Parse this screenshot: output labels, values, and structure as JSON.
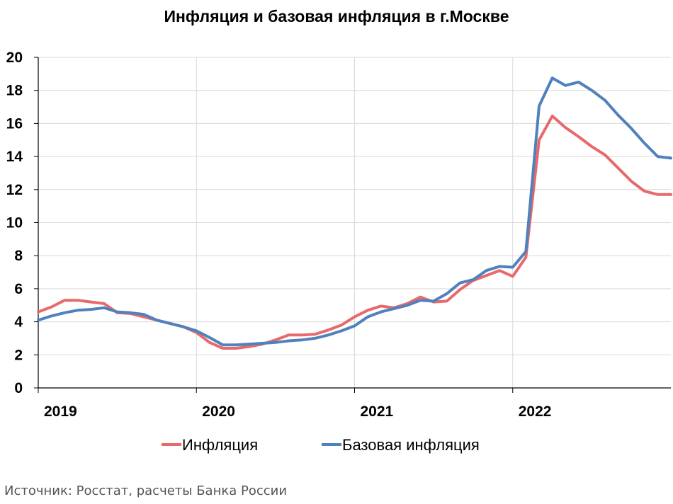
{
  "chart_data": {
    "type": "line",
    "title": "Инфляция и базовая инфляция в г.Москве",
    "ylim": [
      0,
      20
    ],
    "yticks": [
      0,
      2,
      4,
      6,
      8,
      10,
      12,
      14,
      16,
      18,
      20
    ],
    "xlim": [
      2019,
      2023
    ],
    "xticks": [
      "2019",
      "2020",
      "2021",
      "2022"
    ],
    "grid": true,
    "legend_position": "bottom",
    "series": [
      {
        "name": "Инфляция",
        "color": "#e8696b",
        "x": [
          2019.0,
          2019.0833,
          2019.1667,
          2019.25,
          2019.3333,
          2019.4167,
          2019.5,
          2019.5833,
          2019.6667,
          2019.75,
          2019.8333,
          2019.9167,
          2020.0,
          2020.0833,
          2020.1667,
          2020.25,
          2020.3333,
          2020.4167,
          2020.5,
          2020.5833,
          2020.6667,
          2020.75,
          2020.8333,
          2020.9167,
          2021.0,
          2021.0833,
          2021.1667,
          2021.25,
          2021.3333,
          2021.4167,
          2021.5,
          2021.5833,
          2021.6667,
          2021.75,
          2021.8333,
          2021.9167,
          2022.0,
          2022.0833,
          2022.1667,
          2022.25,
          2022.3333,
          2022.4167,
          2022.5,
          2022.5833,
          2022.6667,
          2022.75,
          2022.8333,
          2022.9167,
          2023.0
        ],
        "values": [
          4.6,
          4.9,
          5.3,
          5.3,
          5.2,
          5.1,
          4.55,
          4.5,
          4.3,
          4.1,
          3.9,
          3.7,
          3.35,
          2.75,
          2.4,
          2.4,
          2.5,
          2.65,
          2.9,
          3.2,
          3.2,
          3.25,
          3.5,
          3.8,
          4.3,
          4.7,
          4.95,
          4.85,
          5.1,
          5.5,
          5.2,
          5.25,
          5.95,
          6.5,
          6.8,
          7.1,
          6.75,
          7.9,
          15.0,
          16.45,
          15.75,
          15.2,
          14.6,
          14.1,
          13.3,
          12.5,
          11.9,
          11.7,
          11.7
        ]
      },
      {
        "name": "Базовая инфляция",
        "color": "#4f81bd",
        "x": [
          2019.0,
          2019.0833,
          2019.1667,
          2019.25,
          2019.3333,
          2019.4167,
          2019.5,
          2019.5833,
          2019.6667,
          2019.75,
          2019.8333,
          2019.9167,
          2020.0,
          2020.0833,
          2020.1667,
          2020.25,
          2020.3333,
          2020.4167,
          2020.5,
          2020.5833,
          2020.6667,
          2020.75,
          2020.8333,
          2020.9167,
          2021.0,
          2021.0833,
          2021.1667,
          2021.25,
          2021.3333,
          2021.4167,
          2021.5,
          2021.5833,
          2021.6667,
          2021.75,
          2021.8333,
          2021.9167,
          2022.0,
          2022.0833,
          2022.1667,
          2022.25,
          2022.3333,
          2022.4167,
          2022.5,
          2022.5833,
          2022.6667,
          2022.75,
          2022.8333,
          2022.9167,
          2023.0
        ],
        "values": [
          4.1,
          4.35,
          4.55,
          4.7,
          4.75,
          4.85,
          4.6,
          4.55,
          4.45,
          4.1,
          3.9,
          3.7,
          3.45,
          3.05,
          2.6,
          2.6,
          2.65,
          2.7,
          2.75,
          2.85,
          2.9,
          3.0,
          3.2,
          3.45,
          3.75,
          4.3,
          4.6,
          4.8,
          5.0,
          5.3,
          5.25,
          5.7,
          6.35,
          6.55,
          7.1,
          7.35,
          7.3,
          8.25,
          17.05,
          18.75,
          18.3,
          18.5,
          18.0,
          17.4,
          16.5,
          15.7,
          14.8,
          14.0,
          13.9
        ]
      }
    ]
  },
  "source_note": "Источник: Росстат, расчеты Банка России"
}
